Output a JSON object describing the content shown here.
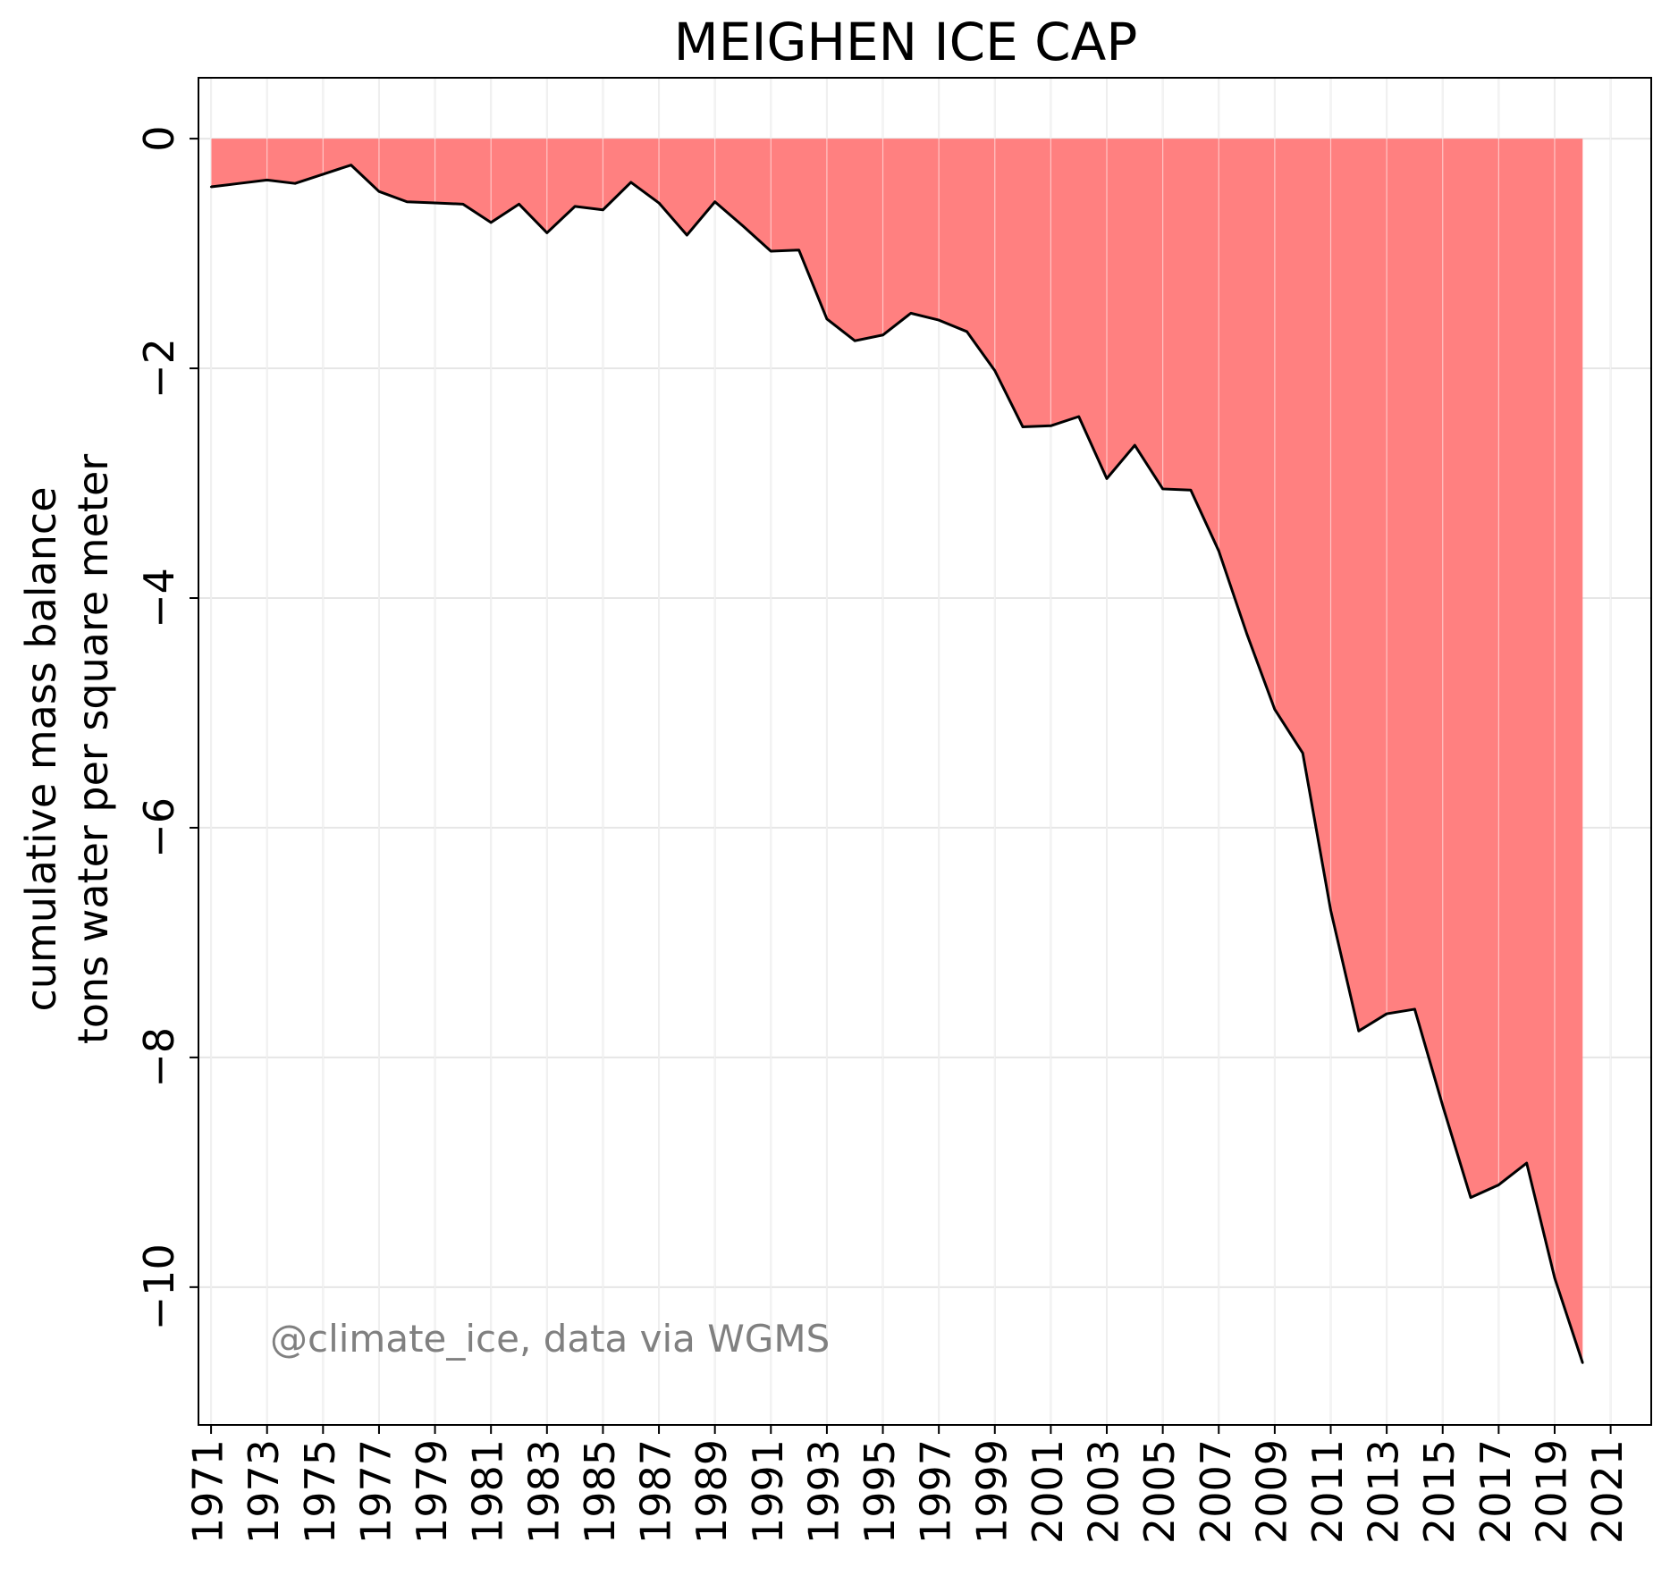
{
  "chart_data": {
    "type": "area",
    "title": "MEIGHEN ICE CAP",
    "xlabel": "",
    "ylabel": [
      "cumulative mass balance",
      "tons water per square meter"
    ],
    "watermark": "@climate_ice, data via WGMS",
    "x_ticks": [
      "1971",
      "1973",
      "1975",
      "1977",
      "1979",
      "1981",
      "1983",
      "1985",
      "1987",
      "1989",
      "1991",
      "1993",
      "1995",
      "1997",
      "1999",
      "2001",
      "2003",
      "2005",
      "2007",
      "2009",
      "2011",
      "2013",
      "2015",
      "2017",
      "2019",
      "2021"
    ],
    "y_ticks": [
      {
        "value": 0,
        "label": "0"
      },
      {
        "value": -2,
        "label": "−2"
      },
      {
        "value": -4,
        "label": "−4"
      },
      {
        "value": -6,
        "label": "−6"
      },
      {
        "value": -8,
        "label": "−8"
      },
      {
        "value": -10,
        "label": "−10"
      }
    ],
    "xlim": [
      1970.55,
      2022.45
    ],
    "ylim": [
      -11.2,
      0.53
    ],
    "grid": true,
    "fill_color": "#ff8080",
    "line_color": "#000000",
    "x": [
      1971,
      1972,
      1973,
      1974,
      1975,
      1976,
      1977,
      1978,
      1979,
      1980,
      1981,
      1982,
      1983,
      1984,
      1985,
      1986,
      1987,
      1988,
      1989,
      1990,
      1991,
      1992,
      1993,
      1994,
      1995,
      1996,
      1997,
      1998,
      1999,
      2000,
      2001,
      2002,
      2003,
      2004,
      2005,
      2006,
      2007,
      2008,
      2009,
      2010,
      2011,
      2012,
      2013,
      2014,
      2015,
      2016,
      2017,
      2018,
      2019,
      2020
    ],
    "y": [
      -0.42,
      -0.39,
      -0.36,
      -0.39,
      -0.31,
      -0.23,
      -0.46,
      -0.55,
      -0.56,
      -0.57,
      -0.73,
      -0.57,
      -0.82,
      -0.59,
      -0.62,
      -0.38,
      -0.56,
      -0.84,
      -0.55,
      -0.76,
      -0.98,
      -0.97,
      -1.57,
      -1.76,
      -1.71,
      -1.52,
      -1.58,
      -1.68,
      -2.02,
      -2.51,
      -2.5,
      -2.42,
      -2.96,
      -2.67,
      -3.05,
      -3.06,
      -3.59,
      -4.31,
      -4.97,
      -5.35,
      -6.72,
      -7.77,
      -7.62,
      -7.58,
      -8.42,
      -9.22,
      -9.11,
      -8.92,
      -9.92,
      -10.66
    ]
  }
}
